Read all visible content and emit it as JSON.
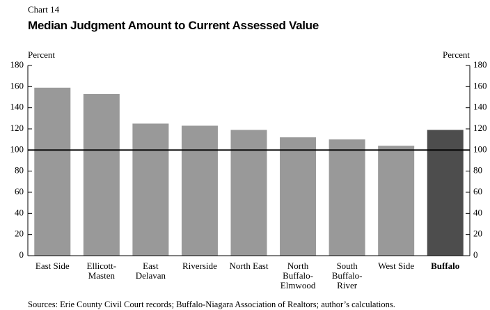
{
  "chart_data": {
    "type": "bar",
    "kicker": "Chart 14",
    "title": "Median Judgment Amount to Current Assessed Value",
    "ylabel": "Percent",
    "y2label": "Percent",
    "categories": [
      "East Side",
      "Ellicott-\nMasten",
      "East\nDelavan",
      "Riverside",
      "North East",
      "North\nBuffalo-\nElmwood",
      "South\nBuffalo-\nRiver",
      "West Side",
      "Buffalo"
    ],
    "values": [
      159,
      153,
      125,
      123,
      119,
      112,
      110,
      104,
      119
    ],
    "colors": [
      "#999999",
      "#999999",
      "#999999",
      "#999999",
      "#999999",
      "#999999",
      "#999999",
      "#999999",
      "#4d4d4d"
    ],
    "bold_categories": [
      false,
      false,
      false,
      false,
      false,
      false,
      false,
      false,
      true
    ],
    "reference_line": 100,
    "ylim": [
      0,
      180
    ],
    "yticks": [
      0,
      20,
      40,
      60,
      80,
      100,
      120,
      140,
      160,
      180
    ],
    "y2lim": [
      0,
      180
    ],
    "y2ticks": [
      0,
      20,
      40,
      60,
      80,
      100,
      120,
      140,
      160,
      180
    ],
    "grid": false,
    "source": "Sources: Erie County Civil Court records; Buffalo-Niagara Association of Realtors; author’s calculations."
  }
}
